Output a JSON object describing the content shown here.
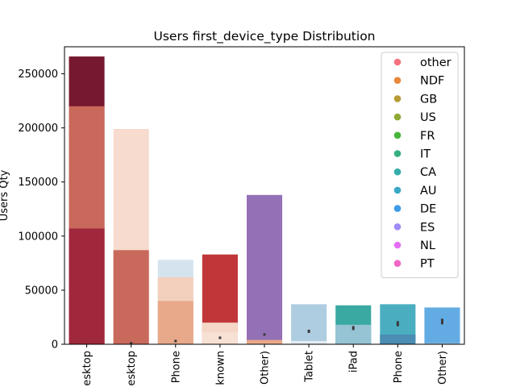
{
  "chart_data": {
    "type": "bar",
    "title": "Users first_device_type Distribution",
    "xlabel": "",
    "ylabel": "Users Qty",
    "ylim": [
      0,
      275000
    ],
    "yticks": [
      0,
      50000,
      100000,
      150000,
      200000,
      250000
    ],
    "grid": false,
    "legend_position": "top-right",
    "categories": [
      "Mac Desktop",
      "Windows Desktop",
      "iPhone",
      "Unknown",
      "Desktop (Other)",
      "Android Tablet",
      "iPad",
      "Android Phone",
      "SmartPhone (Other)"
    ],
    "category_labels_visible": [
      "esktop",
      "esktop",
      "Phone",
      "known",
      "Other)",
      "Tablet",
      "iPad",
      "Phone",
      "Other)"
    ],
    "stacked_overlays": [
      {
        "category": "Mac Desktop",
        "layers": [
          {
            "value": 266000,
            "color": "#76182e"
          },
          {
            "value": 220000,
            "color": "#c8695b"
          },
          {
            "value": 107000,
            "color": "#a0283c"
          }
        ],
        "error": null
      },
      {
        "category": "Windows Desktop",
        "layers": [
          {
            "value": 199000,
            "color": "#f6dbce"
          },
          {
            "value": 87000,
            "color": "#c8695b"
          }
        ],
        "error": 1000
      },
      {
        "category": "iPhone",
        "layers": [
          {
            "value": 78000,
            "color": "#d5e3ee"
          },
          {
            "value": 62000,
            "color": "#f3d0bd"
          },
          {
            "value": 40000,
            "color": "#e8a98a"
          }
        ],
        "error": 3000
      },
      {
        "category": "Unknown",
        "layers": [
          {
            "value": 83000,
            "color": "#c13639"
          },
          {
            "value": 20000,
            "color": "#f6d6c6"
          },
          {
            "value": 11000,
            "color": "#f7e0d4"
          }
        ],
        "error": 6000
      },
      {
        "category": "Desktop (Other)",
        "layers": [
          {
            "value": 138000,
            "color": "#9471b6"
          },
          {
            "value": 4000,
            "color": "#e8a98a"
          }
        ],
        "error": 9000
      },
      {
        "category": "Android Tablet",
        "layers": [
          {
            "value": 37000,
            "color": "#afcde0"
          },
          {
            "value": 3000,
            "color": "#e3edf3"
          }
        ],
        "error": 12000
      },
      {
        "category": "iPad",
        "layers": [
          {
            "value": 36000,
            "color": "#3aa9a1"
          },
          {
            "value": 18000,
            "color": "#96c4d4"
          }
        ],
        "error": 15000
      },
      {
        "category": "Android Phone",
        "layers": [
          {
            "value": 37000,
            "color": "#4aaec0"
          },
          {
            "value": 9000,
            "color": "#4b8db3"
          }
        ],
        "error": 19000
      },
      {
        "category": "SmartPhone (Other)",
        "layers": [
          {
            "value": 34000,
            "color": "#63ace3"
          },
          {
            "value": 1000,
            "color": "#9ec8e8"
          }
        ],
        "error": 21000
      }
    ],
    "legend": [
      {
        "label": "other",
        "color": "#f5737e"
      },
      {
        "label": "NDF",
        "color": "#e8883e"
      },
      {
        "label": "GB",
        "color": "#b69b36"
      },
      {
        "label": "US",
        "color": "#8fa935"
      },
      {
        "label": "FR",
        "color": "#47b43a"
      },
      {
        "label": "IT",
        "color": "#33af80"
      },
      {
        "label": "CA",
        "color": "#36ada9"
      },
      {
        "label": "AU",
        "color": "#38a8c4"
      },
      {
        "label": "DE",
        "color": "#3f9ae8"
      },
      {
        "label": "ES",
        "color": "#a08cf6"
      },
      {
        "label": "NL",
        "color": "#e36ef1"
      },
      {
        "label": "PT",
        "color": "#f267c6"
      }
    ]
  }
}
